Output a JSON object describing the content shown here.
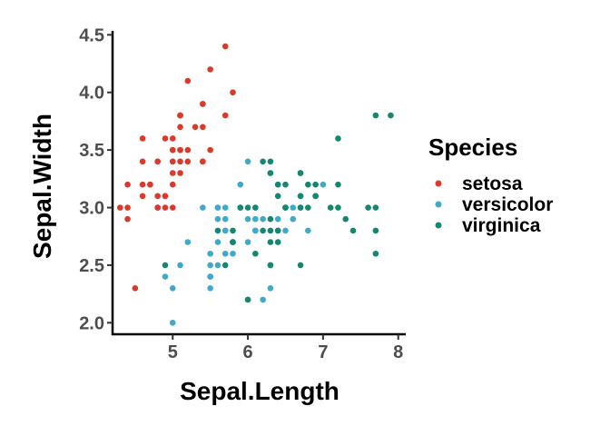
{
  "chart_data": {
    "type": "scatter",
    "xlabel": "Sepal.Length",
    "ylabel": "Sepal.Width",
    "xlim": [
      4.2,
      8.1
    ],
    "ylim": [
      1.9,
      4.55
    ],
    "xticks": [
      5,
      6,
      7,
      8
    ],
    "yticks": [
      2.0,
      2.5,
      3.0,
      3.5,
      4.0,
      4.5
    ],
    "xtick_labels": [
      "5",
      "6",
      "7",
      "8"
    ],
    "ytick_labels": [
      "2.0",
      "2.5",
      "3.0",
      "3.5",
      "4.0",
      "4.5"
    ],
    "grid": false,
    "legend": {
      "title": "Species",
      "placement": "right"
    },
    "series": [
      {
        "name": "setosa",
        "color": "#D93A2B",
        "points": [
          [
            5.1,
            3.5
          ],
          [
            4.9,
            3.0
          ],
          [
            4.7,
            3.2
          ],
          [
            4.6,
            3.1
          ],
          [
            5.0,
            3.6
          ],
          [
            5.4,
            3.9
          ],
          [
            4.6,
            3.4
          ],
          [
            5.0,
            3.4
          ],
          [
            4.4,
            2.9
          ],
          [
            4.9,
            3.1
          ],
          [
            5.4,
            3.7
          ],
          [
            4.8,
            3.4
          ],
          [
            4.8,
            3.0
          ],
          [
            4.3,
            3.0
          ],
          [
            5.8,
            4.0
          ],
          [
            5.7,
            4.4
          ],
          [
            5.4,
            3.9
          ],
          [
            5.1,
            3.5
          ],
          [
            5.7,
            3.8
          ],
          [
            5.1,
            3.8
          ],
          [
            5.4,
            3.4
          ],
          [
            5.1,
            3.7
          ],
          [
            4.6,
            3.6
          ],
          [
            5.1,
            3.3
          ],
          [
            4.8,
            3.4
          ],
          [
            5.0,
            3.0
          ],
          [
            5.0,
            3.4
          ],
          [
            5.2,
            3.5
          ],
          [
            5.2,
            3.4
          ],
          [
            4.7,
            3.2
          ],
          [
            4.8,
            3.1
          ],
          [
            5.4,
            3.4
          ],
          [
            5.2,
            4.1
          ],
          [
            5.5,
            4.2
          ],
          [
            4.9,
            3.1
          ],
          [
            5.0,
            3.2
          ],
          [
            5.5,
            3.5
          ],
          [
            4.9,
            3.6
          ],
          [
            4.4,
            3.0
          ],
          [
            5.1,
            3.4
          ],
          [
            5.0,
            3.5
          ],
          [
            4.5,
            2.3
          ],
          [
            4.4,
            3.2
          ],
          [
            5.0,
            3.5
          ],
          [
            5.1,
            3.8
          ],
          [
            4.8,
            3.0
          ],
          [
            5.1,
            3.8
          ],
          [
            4.6,
            3.2
          ],
          [
            5.3,
            3.7
          ],
          [
            5.0,
            3.3
          ]
        ]
      },
      {
        "name": "versicolor",
        "color": "#3FA9C9",
        "points": [
          [
            7.0,
            3.2
          ],
          [
            6.4,
            3.2
          ],
          [
            6.9,
            3.1
          ],
          [
            5.5,
            2.3
          ],
          [
            6.5,
            2.8
          ],
          [
            5.7,
            2.8
          ],
          [
            6.3,
            3.3
          ],
          [
            4.9,
            2.4
          ],
          [
            6.6,
            2.9
          ],
          [
            5.2,
            2.7
          ],
          [
            5.0,
            2.0
          ],
          [
            5.9,
            3.0
          ],
          [
            6.0,
            2.2
          ],
          [
            6.1,
            2.9
          ],
          [
            5.6,
            2.9
          ],
          [
            6.7,
            3.1
          ],
          [
            5.6,
            3.0
          ],
          [
            5.8,
            2.7
          ],
          [
            6.2,
            2.2
          ],
          [
            5.6,
            2.5
          ],
          [
            5.9,
            3.2
          ],
          [
            6.1,
            2.8
          ],
          [
            6.3,
            2.5
          ],
          [
            6.1,
            2.8
          ],
          [
            6.4,
            2.9
          ],
          [
            6.6,
            3.0
          ],
          [
            6.8,
            2.8
          ],
          [
            6.7,
            3.0
          ],
          [
            6.0,
            2.9
          ],
          [
            5.7,
            2.6
          ],
          [
            5.5,
            2.4
          ],
          [
            5.5,
            2.4
          ],
          [
            5.8,
            2.7
          ],
          [
            6.0,
            2.7
          ],
          [
            5.4,
            3.0
          ],
          [
            6.0,
            3.4
          ],
          [
            6.7,
            3.1
          ],
          [
            6.3,
            2.3
          ],
          [
            5.6,
            3.0
          ],
          [
            5.5,
            2.5
          ],
          [
            5.5,
            2.6
          ],
          [
            6.1,
            3.0
          ],
          [
            5.8,
            2.6
          ],
          [
            5.0,
            2.3
          ],
          [
            5.6,
            2.7
          ],
          [
            5.7,
            3.0
          ],
          [
            5.7,
            2.9
          ],
          [
            6.2,
            2.9
          ],
          [
            5.1,
            2.5
          ],
          [
            5.7,
            2.8
          ]
        ]
      },
      {
        "name": "virginica",
        "color": "#15876E",
        "points": [
          [
            6.3,
            3.3
          ],
          [
            5.8,
            2.7
          ],
          [
            7.1,
            3.0
          ],
          [
            6.3,
            2.9
          ],
          [
            6.5,
            3.0
          ],
          [
            7.6,
            3.0
          ],
          [
            4.9,
            2.5
          ],
          [
            7.3,
            2.9
          ],
          [
            6.7,
            2.5
          ],
          [
            7.2,
            3.6
          ],
          [
            6.5,
            3.2
          ],
          [
            6.4,
            2.7
          ],
          [
            6.8,
            3.0
          ],
          [
            5.7,
            2.5
          ],
          [
            5.8,
            2.8
          ],
          [
            6.4,
            3.2
          ],
          [
            6.5,
            3.0
          ],
          [
            7.7,
            3.8
          ],
          [
            7.7,
            2.6
          ],
          [
            6.0,
            2.2
          ],
          [
            6.9,
            3.2
          ],
          [
            5.6,
            2.8
          ],
          [
            7.7,
            2.8
          ],
          [
            6.3,
            2.7
          ],
          [
            6.7,
            3.3
          ],
          [
            7.2,
            3.2
          ],
          [
            6.2,
            2.8
          ],
          [
            6.1,
            3.0
          ],
          [
            6.4,
            2.8
          ],
          [
            7.2,
            3.0
          ],
          [
            7.4,
            2.8
          ],
          [
            7.9,
            3.8
          ],
          [
            6.4,
            2.8
          ],
          [
            6.3,
            2.8
          ],
          [
            6.1,
            2.6
          ],
          [
            7.7,
            3.0
          ],
          [
            6.3,
            3.4
          ],
          [
            6.4,
            3.1
          ],
          [
            6.0,
            3.0
          ],
          [
            6.9,
            3.1
          ],
          [
            6.7,
            3.1
          ],
          [
            6.9,
            3.1
          ],
          [
            5.8,
            2.7
          ],
          [
            6.8,
            3.2
          ],
          [
            6.7,
            3.3
          ],
          [
            6.7,
            3.0
          ],
          [
            6.3,
            2.5
          ],
          [
            6.5,
            3.0
          ],
          [
            6.2,
            3.4
          ],
          [
            5.9,
            3.0
          ]
        ]
      }
    ]
  }
}
